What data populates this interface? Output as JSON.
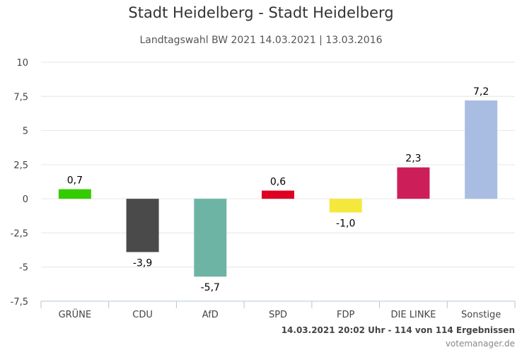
{
  "header": {
    "title": "Stadt Heidelberg - Stadt Heidelberg",
    "subtitle": "Landtagswahl BW 2021 14.03.2021 | 13.03.2016"
  },
  "footer": {
    "status": "14.03.2021 20:02 Uhr - 114 von 114 Ergebnissen",
    "credits": "votemanager.de"
  },
  "chart_data": {
    "type": "bar",
    "title": "Stadt Heidelberg - Stadt Heidelberg",
    "subtitle": "Landtagswahl BW 2021 14.03.2021 | 13.03.2016",
    "xlabel": "",
    "ylabel": "",
    "categories": [
      "GRÜNE",
      "CDU",
      "AfD",
      "SPD",
      "FDP",
      "DIE LINKE",
      "Sonstige"
    ],
    "values": [
      0.7,
      -3.9,
      -5.7,
      0.6,
      -1.0,
      2.3,
      7.2
    ],
    "data_labels": [
      "0,7",
      "-3,9",
      "-5,7",
      "0,6",
      "-1,0",
      "2,3",
      "7,2"
    ],
    "colors": [
      "#33cc00",
      "#4a4a4a",
      "#6db4a5",
      "#dd0022",
      "#f5e83c",
      "#cc1f5a",
      "#a9bde3"
    ],
    "ylim": [
      -7.5,
      10
    ],
    "yticks": [
      10,
      7.5,
      5,
      2.5,
      0,
      -2.5,
      -5,
      -7.5
    ],
    "ytick_labels": [
      "10",
      "7,5",
      "5",
      "2,5",
      "0",
      "-2,5",
      "-5",
      "-7,5"
    ],
    "grid": true,
    "legend": "none"
  }
}
